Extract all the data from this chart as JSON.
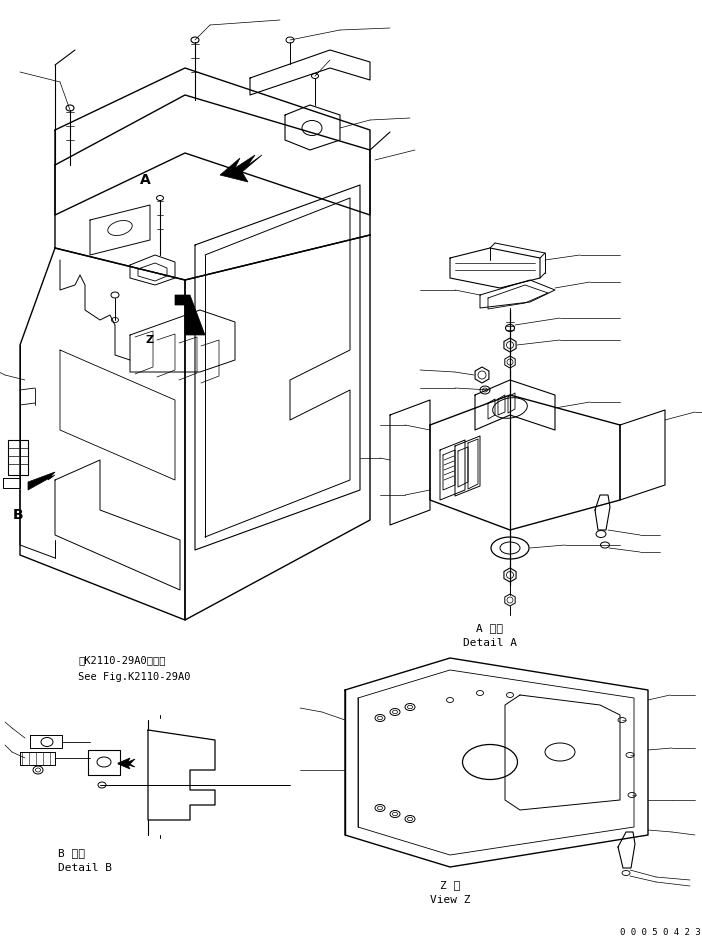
{
  "bg_color": "#ffffff",
  "line_color": "#000000",
  "page_id": "0 0 0 5 0 4 2 3",
  "label_A_detail_jp": "A 詳細",
  "label_A_detail_en": "Detail A",
  "label_B_detail_jp": "B 詳細",
  "label_B_detail_en": "Detail B",
  "label_Z_view_jp": "Z 視",
  "label_Z_view_en": "View Z",
  "label_ref_jp": "第K2110-29A0図参照",
  "label_ref_en": "See Fig.K2110-29A0",
  "label_A": "A",
  "label_B": "B"
}
